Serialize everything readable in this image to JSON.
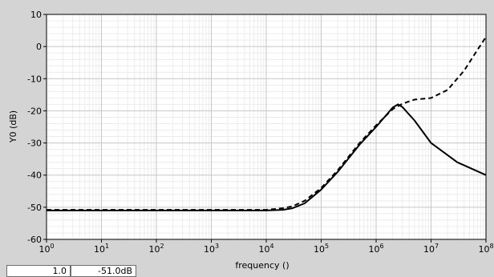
{
  "chart_data": {
    "type": "line",
    "xscale": "log",
    "xlim": [
      1,
      100000000
    ],
    "ylim": [
      -60,
      10
    ],
    "xlabel": "frequency ()",
    "ylabel": "Y0 (dB)",
    "yticks": [
      10,
      0,
      -10,
      -20,
      -30,
      -40,
      -50,
      -60
    ],
    "xticks": [
      {
        "value": 1,
        "base": "10",
        "exp": "0"
      },
      {
        "value": 10,
        "base": "10",
        "exp": "1"
      },
      {
        "value": 100,
        "base": "10",
        "exp": "2"
      },
      {
        "value": 1000,
        "base": "10",
        "exp": "3"
      },
      {
        "value": 10000,
        "base": "10",
        "exp": "4"
      },
      {
        "value": 100000,
        "base": "10",
        "exp": "5"
      },
      {
        "value": 1000000,
        "base": "10",
        "exp": "6"
      },
      {
        "value": 10000000,
        "base": "10",
        "exp": "7"
      },
      {
        "value": 100000000,
        "base": "10",
        "exp": "8"
      }
    ],
    "grid": true,
    "series": [
      {
        "style": "solid",
        "color": "#000000",
        "x": [
          1,
          10,
          100,
          1000,
          10000,
          20000,
          30000,
          50000,
          100000,
          200000,
          500000,
          1000000,
          1500000,
          2000000,
          2500000,
          3000000,
          5000000,
          10000000,
          30000000,
          100000000
        ],
        "y": [
          -51,
          -51,
          -51,
          -51,
          -51,
          -50.8,
          -50.3,
          -48.8,
          -44.5,
          -39,
          -30.5,
          -25,
          -21.5,
          -19,
          -18,
          -18.8,
          -23,
          -30,
          -36,
          -40
        ]
      },
      {
        "style": "dashed",
        "color": "#000000",
        "x": [
          1,
          10,
          100,
          1000,
          10000,
          20000,
          30000,
          50000,
          100000,
          200000,
          500000,
          1000000,
          2000000,
          3000000,
          5000000,
          10000000,
          20000000,
          40000000,
          70000000,
          100000000
        ],
        "y": [
          -50.8,
          -50.8,
          -50.8,
          -50.8,
          -50.8,
          -50.3,
          -49.7,
          -48,
          -44,
          -38.5,
          -30,
          -24.5,
          -19.5,
          -17.8,
          -16.5,
          -16,
          -13.5,
          -7.5,
          -1,
          3
        ]
      }
    ]
  },
  "readout": {
    "x_value": "1.0",
    "y_value": "-51.0dB"
  }
}
